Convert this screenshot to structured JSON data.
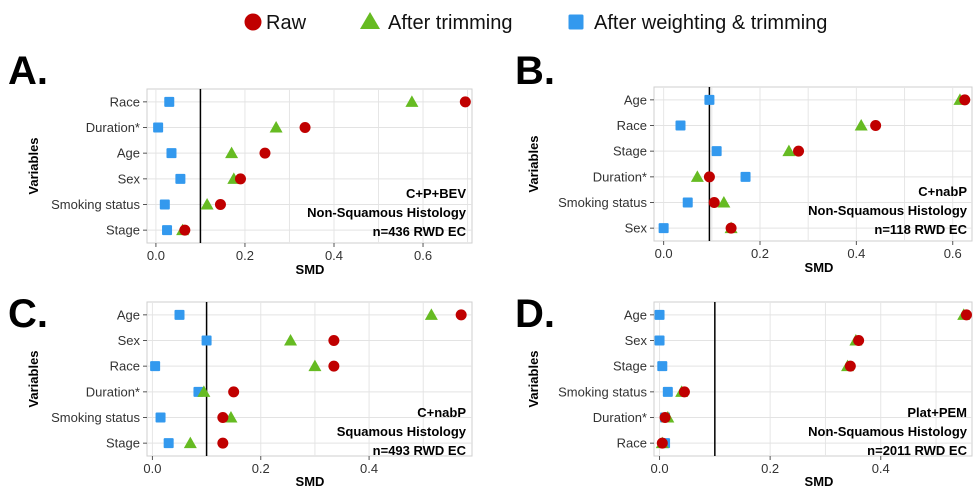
{
  "legend": [
    {
      "name": "Raw",
      "color": "#c00000",
      "shape": "circle"
    },
    {
      "name": "After trimming",
      "color": "#66bb22",
      "shape": "triangle"
    },
    {
      "name": "After weighting & trimming",
      "color": "#3399ee",
      "shape": "square"
    }
  ],
  "chart_data": [
    {
      "type": "scatter",
      "panel": "A.",
      "xlabel": "SMD",
      "ylabel": "Variables",
      "xlim": [
        -0.02,
        0.71
      ],
      "xticks": [
        0.0,
        0.2,
        0.4,
        0.6
      ],
      "xtick_labels": [
        "0.0",
        "0.2",
        "0.4",
        "0.6"
      ],
      "reference_line": 0.1,
      "categories": [
        "Race",
        "Duration*",
        "Age",
        "Sex",
        "Smoking status",
        "Stage"
      ],
      "series": [
        {
          "name": "Raw",
          "values": [
            0.695,
            0.335,
            0.245,
            0.19,
            0.145,
            0.065
          ]
        },
        {
          "name": "After trimming",
          "values": [
            0.575,
            0.27,
            0.17,
            0.175,
            0.115,
            0.06
          ]
        },
        {
          "name": "After weighting & trimming",
          "values": [
            0.03,
            0.005,
            0.035,
            0.055,
            0.02,
            0.025
          ]
        }
      ],
      "annotation": [
        "C+P+BEV",
        "Non-Squamous Histology",
        "n=436 RWD EC"
      ]
    },
    {
      "type": "scatter",
      "panel": "B.",
      "xlabel": "SMD",
      "ylabel": "Variables",
      "xlim": [
        -0.02,
        0.64
      ],
      "xticks": [
        0.0,
        0.2,
        0.4,
        0.6
      ],
      "xtick_labels": [
        "0.0",
        "0.2",
        "0.4",
        "0.6"
      ],
      "reference_line": 0.095,
      "categories": [
        "Age",
        "Race",
        "Stage",
        "Duration*",
        "Smoking status",
        "Sex"
      ],
      "series": [
        {
          "name": "Raw",
          "values": [
            0.625,
            0.44,
            0.28,
            0.095,
            0.105,
            0.14
          ]
        },
        {
          "name": "After trimming",
          "values": [
            0.615,
            0.41,
            0.26,
            0.07,
            0.125,
            0.14
          ]
        },
        {
          "name": "After weighting & trimming",
          "values": [
            0.095,
            0.035,
            0.11,
            0.17,
            0.05,
            0.0
          ]
        }
      ],
      "annotation": [
        "C+nabP",
        "Non-Squamous Histology",
        "n=118 RWD EC"
      ]
    },
    {
      "type": "scatter",
      "panel": "C.",
      "xlabel": "SMD",
      "ylabel": "Variables",
      "xlim": [
        -0.01,
        0.59
      ],
      "xticks": [
        0.0,
        0.2,
        0.4
      ],
      "xtick_labels": [
        "0.0",
        "0.2",
        "0.4"
      ],
      "reference_line": 0.1,
      "categories": [
        "Age",
        "Sex",
        "Race",
        "Duration*",
        "Smoking status",
        "Stage"
      ],
      "series": [
        {
          "name": "Raw",
          "values": [
            0.57,
            0.335,
            0.335,
            0.15,
            0.13,
            0.13
          ]
        },
        {
          "name": "After trimming",
          "values": [
            0.515,
            0.255,
            0.3,
            0.095,
            0.145,
            0.07
          ]
        },
        {
          "name": "After weighting & trimming",
          "values": [
            0.05,
            0.1,
            0.005,
            0.085,
            0.015,
            0.03
          ]
        }
      ],
      "annotation": [
        "C+nabP",
        "Squamous Histology",
        "n=493 RWD EC"
      ]
    },
    {
      "type": "scatter",
      "panel": "D.",
      "xlabel": "SMD",
      "ylabel": "Variables",
      "xlim": [
        -0.01,
        0.565
      ],
      "xticks": [
        0.0,
        0.2,
        0.4
      ],
      "xtick_labels": [
        "0.0",
        "0.2",
        "0.4"
      ],
      "reference_line": 0.1,
      "categories": [
        "Age",
        "Sex",
        "Stage",
        "Smoking status",
        "Duration*",
        "Race"
      ],
      "series": [
        {
          "name": "Raw",
          "values": [
            0.555,
            0.36,
            0.345,
            0.045,
            0.01,
            0.005
          ]
        },
        {
          "name": "After trimming",
          "values": [
            0.55,
            0.355,
            0.34,
            0.04,
            0.015,
            0.005
          ]
        },
        {
          "name": "After weighting & trimming",
          "values": [
            0.0,
            0.0,
            0.005,
            0.015,
            0.01,
            0.01
          ]
        }
      ],
      "annotation": [
        "Plat+PEM",
        "Non-Squamous Histology",
        "n=2011 RWD EC"
      ]
    }
  ]
}
